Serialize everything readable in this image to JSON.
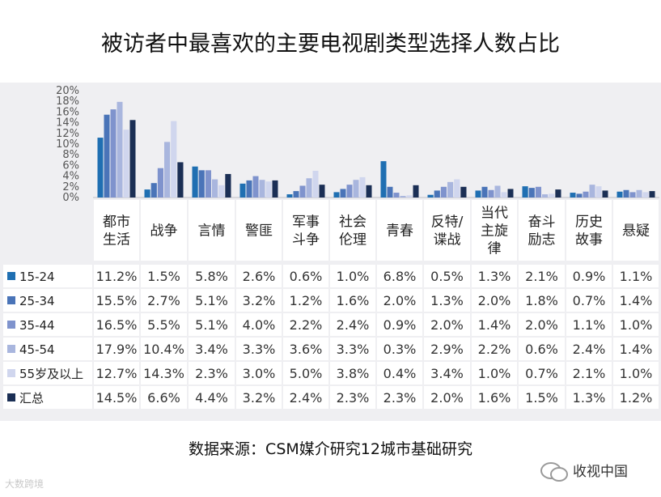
{
  "title": "被访者中最喜欢的主要电视剧类型选择人数占比",
  "source": "数据来源：CSM媒介研究12城市基础研究",
  "watermark_left": "大数跨境",
  "watermark_right": "收视中国",
  "chart_data": {
    "type": "bar",
    "title": "被访者中最喜欢的主要电视剧类型选择人数占比",
    "ylabel": "",
    "ylim": [
      0,
      20
    ],
    "yticks": [
      "0%",
      "2%",
      "4%",
      "6%",
      "8%",
      "10%",
      "12%",
      "14%",
      "16%",
      "18%",
      "20%"
    ],
    "grid": false,
    "legend": "left table rows",
    "categories": [
      {
        "lines": [
          "都市",
          "生活"
        ]
      },
      {
        "lines": [
          "战争"
        ]
      },
      {
        "lines": [
          "言情"
        ]
      },
      {
        "lines": [
          "警匪"
        ]
      },
      {
        "lines": [
          "军事",
          "斗争"
        ]
      },
      {
        "lines": [
          "社会",
          "伦理"
        ]
      },
      {
        "lines": [
          "青春"
        ]
      },
      {
        "lines": [
          "反特/",
          "谍战"
        ]
      },
      {
        "lines": [
          "当代",
          "主旋",
          "律"
        ]
      },
      {
        "lines": [
          "奋斗",
          "励志"
        ]
      },
      {
        "lines": [
          "历史",
          "故事"
        ]
      },
      {
        "lines": [
          "悬疑"
        ]
      }
    ],
    "series": [
      {
        "name": "15-24",
        "color": "#1f6fb2",
        "values": [
          11.2,
          1.5,
          5.8,
          2.6,
          0.6,
          1.0,
          6.8,
          0.5,
          1.3,
          2.1,
          0.9,
          1.1
        ],
        "labels": [
          "11.2%",
          "1.5%",
          "5.8%",
          "2.6%",
          "0.6%",
          "1.0%",
          "6.8%",
          "0.5%",
          "1.3%",
          "2.1%",
          "0.9%",
          "1.1%"
        ]
      },
      {
        "name": "25-34",
        "color": "#4a74b8",
        "values": [
          15.5,
          2.7,
          5.1,
          3.2,
          1.2,
          1.6,
          2.0,
          1.3,
          2.0,
          1.8,
          0.7,
          1.4
        ],
        "labels": [
          "15.5%",
          "2.7%",
          "5.1%",
          "3.2%",
          "1.2%",
          "1.6%",
          "2.0%",
          "1.3%",
          "2.0%",
          "1.8%",
          "0.7%",
          "1.4%"
        ]
      },
      {
        "name": "35-44",
        "color": "#7f93cd",
        "values": [
          16.5,
          5.5,
          5.1,
          4.0,
          2.2,
          2.4,
          0.9,
          2.0,
          1.4,
          2.0,
          1.1,
          1.0
        ],
        "labels": [
          "16.5%",
          "5.5%",
          "5.1%",
          "4.0%",
          "2.2%",
          "2.4%",
          "0.9%",
          "2.0%",
          "1.4%",
          "2.0%",
          "1.1%",
          "1.0%"
        ]
      },
      {
        "name": "45-54",
        "color": "#a9b6de",
        "values": [
          17.9,
          10.4,
          3.4,
          3.3,
          3.6,
          3.3,
          0.3,
          2.9,
          2.2,
          0.6,
          2.4,
          1.4
        ],
        "labels": [
          "17.9%",
          "10.4%",
          "3.4%",
          "3.3%",
          "3.6%",
          "3.3%",
          "0.3%",
          "2.9%",
          "2.2%",
          "0.6%",
          "2.4%",
          "1.4%"
        ]
      },
      {
        "name": "55岁及以上",
        "color": "#d0d6ee",
        "values": [
          12.7,
          14.3,
          2.3,
          3.0,
          5.0,
          3.8,
          0.4,
          3.4,
          1.0,
          0.7,
          2.1,
          1.0
        ],
        "labels": [
          "12.7%",
          "14.3%",
          "2.3%",
          "3.0%",
          "5.0%",
          "3.8%",
          "0.4%",
          "3.4%",
          "1.0%",
          "0.7%",
          "2.1%",
          "1.0%"
        ]
      },
      {
        "name": "汇总",
        "color": "#1b2f55",
        "values": [
          14.5,
          6.6,
          4.4,
          3.2,
          2.4,
          2.3,
          2.3,
          2.0,
          1.6,
          1.5,
          1.3,
          1.2
        ],
        "labels": [
          "14.5%",
          "6.6%",
          "4.4%",
          "3.2%",
          "2.4%",
          "2.3%",
          "2.3%",
          "2.0%",
          "1.6%",
          "1.5%",
          "1.3%",
          "1.2%"
        ]
      }
    ]
  }
}
